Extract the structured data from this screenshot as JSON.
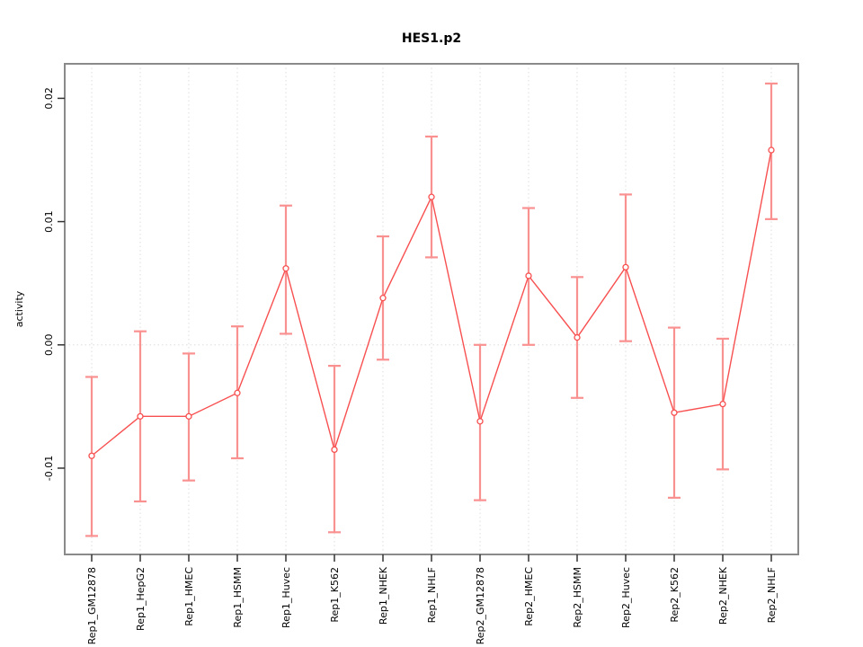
{
  "chart_data": {
    "type": "line",
    "title": "HES1.p2",
    "xlabel": "",
    "ylabel": "activity",
    "legend": "none",
    "grid": {
      "vertical_dotted_at_each_category": true,
      "horizontal_dotted_at_zero": true
    },
    "categories": [
      "Rep1_GM12878",
      "Rep1_HepG2",
      "Rep1_HMEC",
      "Rep1_HSMM",
      "Rep1_Huvec",
      "Rep1_K562",
      "Rep1_NHEK",
      "Rep1_NHLF",
      "Rep2_GM12878",
      "Rep2_HMEC",
      "Rep2_HSMM",
      "Rep2_Huvec",
      "Rep2_K562",
      "Rep2_NHEK",
      "Rep2_NHLF"
    ],
    "series": [
      {
        "name": "activity",
        "marker": "open-circle",
        "values": [
          -0.009,
          -0.0058,
          -0.0058,
          -0.0039,
          0.0062,
          -0.0085,
          0.0038,
          0.012,
          -0.0062,
          0.0056,
          0.0006,
          0.0063,
          -0.0055,
          -0.0048,
          0.0158
        ],
        "err_low": [
          -0.0155,
          -0.0127,
          -0.011,
          -0.0092,
          0.0009,
          -0.0152,
          -0.0012,
          0.0071,
          -0.0126,
          0.0,
          -0.0043,
          0.0003,
          -0.0124,
          -0.0101,
          0.0102
        ],
        "err_high": [
          -0.0026,
          0.0011,
          -0.0007,
          0.0015,
          0.0113,
          -0.0017,
          0.0088,
          0.0169,
          0.0,
          0.0111,
          0.0055,
          0.0122,
          0.0014,
          0.0005,
          0.0212
        ]
      }
    ],
    "ylim": [
      -0.017,
      0.0228
    ],
    "yticks": [
      -0.01,
      0.0,
      0.01,
      0.02
    ],
    "ytick_labels": [
      "-0.01",
      "0.00",
      "0.01",
      "0.02"
    ],
    "colors": {
      "line": "#f85050",
      "errorbar": "#fa9191",
      "marker_stroke": "#f85050",
      "grid": "#e2e2e2",
      "zero_line": "#e2e2e2",
      "box_border": "#8a8a8a",
      "tick": "#333333",
      "text": "#000000",
      "background": "#ffffff"
    }
  }
}
